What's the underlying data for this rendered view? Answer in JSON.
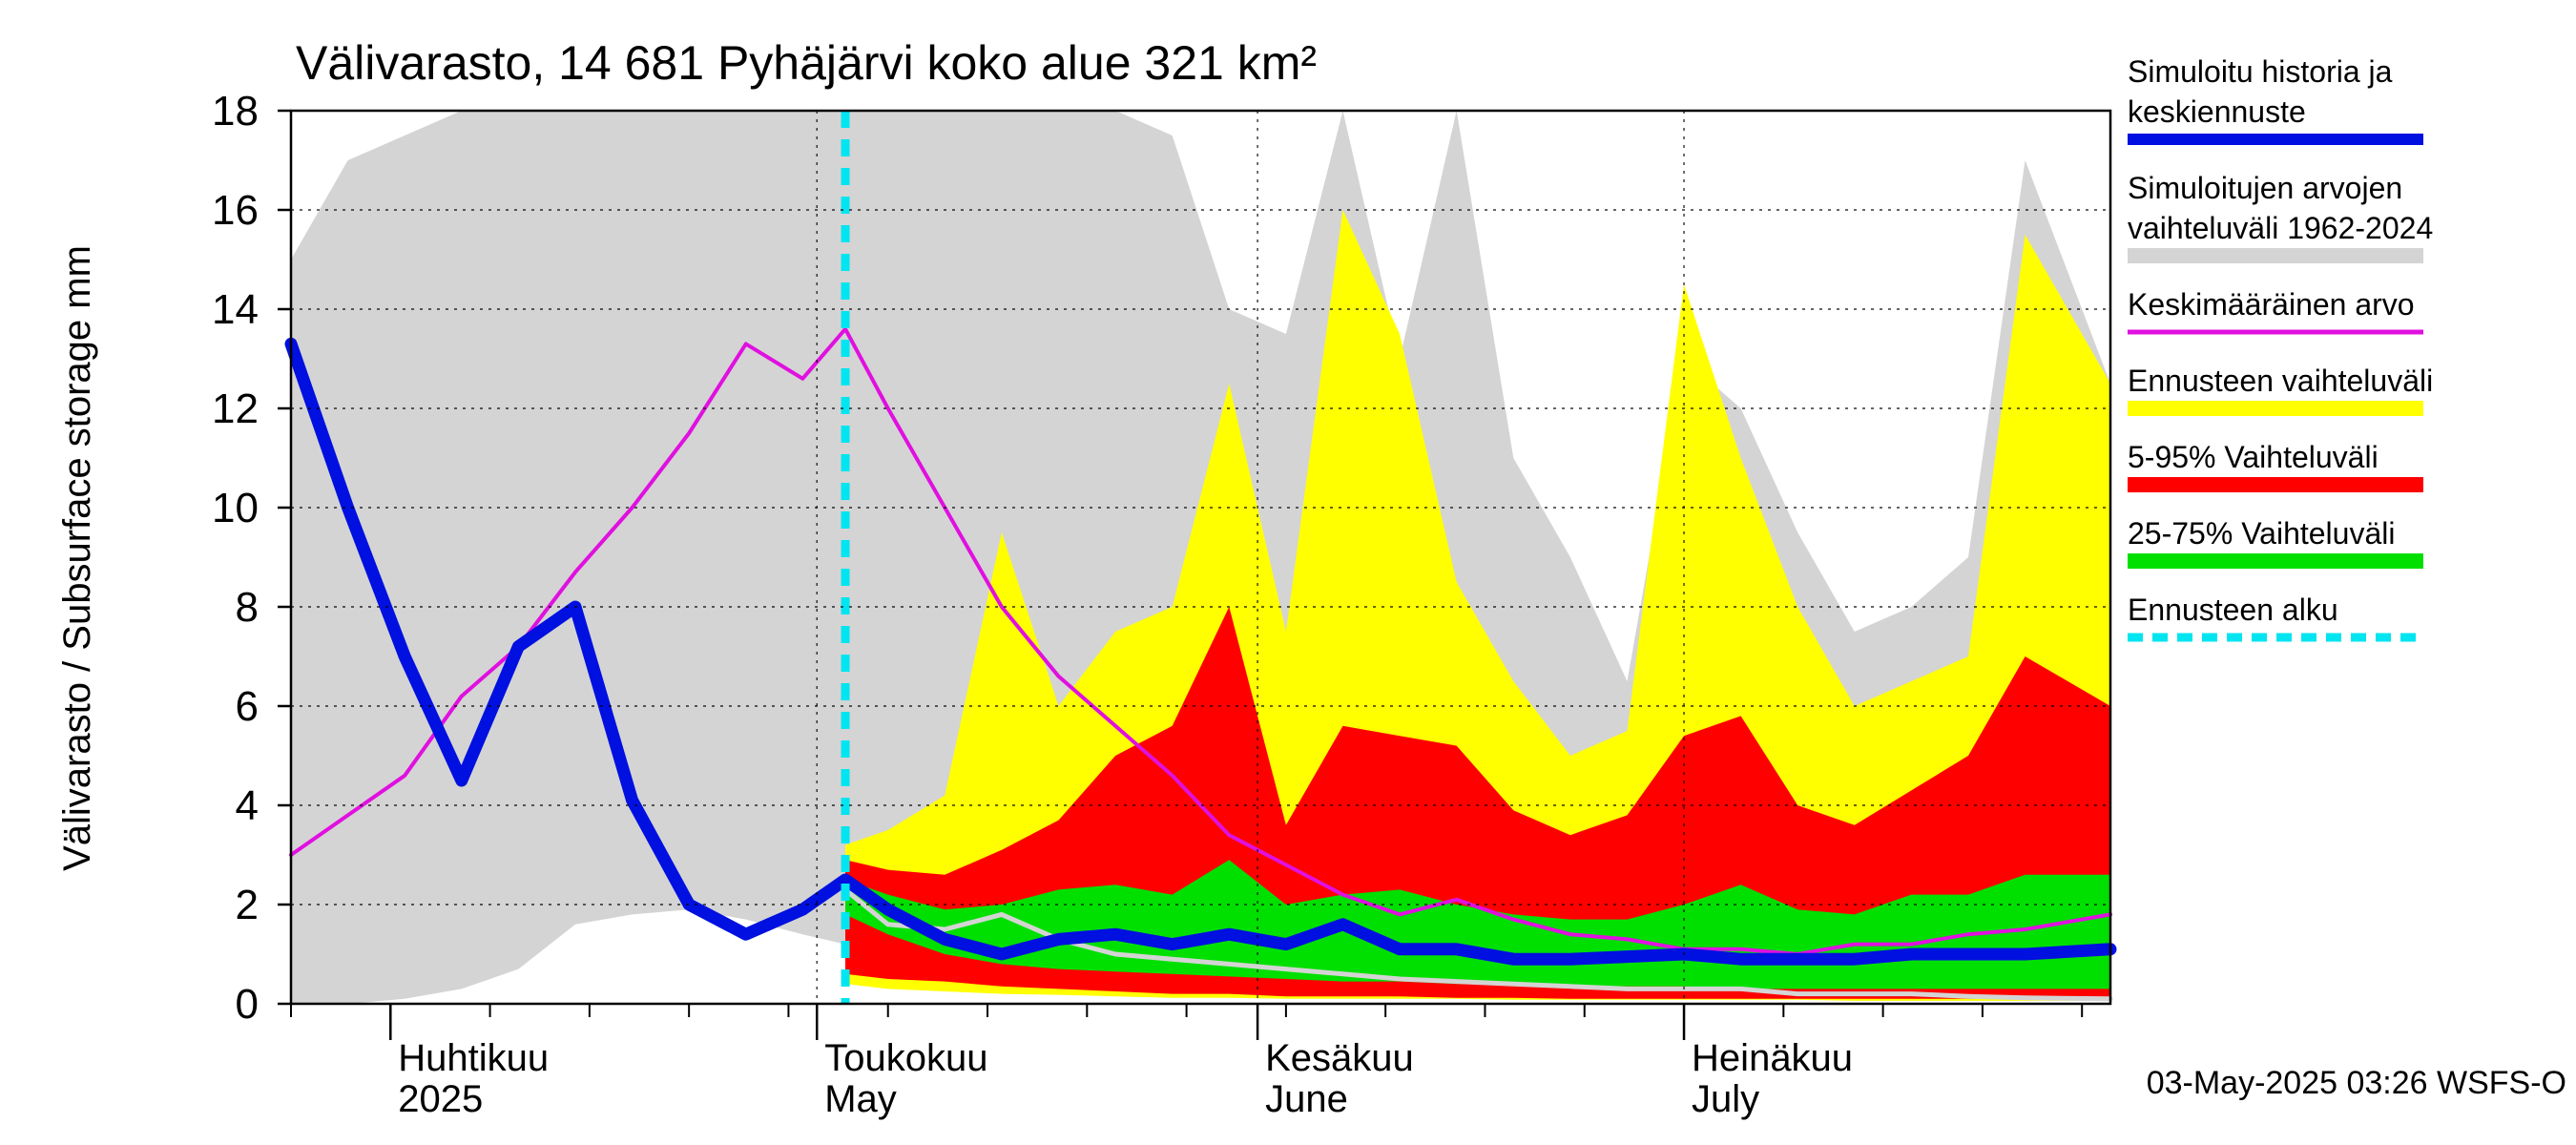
{
  "chart_data": {
    "type": "area",
    "title": "Välivarasto, 14 681 Pyhäjärvi koko alue 321 km²",
    "ylabel": "Välivarasto / Subsurface storage  mm",
    "ylim": [
      0,
      18
    ],
    "yticks": [
      0,
      2,
      4,
      6,
      8,
      10,
      12,
      14,
      16,
      18
    ],
    "xlim": [
      "2025-03-25",
      "2025-07-31"
    ],
    "grid": true,
    "legend_position": "right",
    "month_labels": [
      {
        "line1": "Huhtikuu",
        "line2": "2025",
        "date": "2025-04-01"
      },
      {
        "line1": "Toukokuu",
        "line2": "May",
        "date": "2025-05-01"
      },
      {
        "line1": "Kesäkuu",
        "line2": "June",
        "date": "2025-06-01"
      },
      {
        "line1": "Heinäkuu",
        "line2": "July",
        "date": "2025-07-01"
      }
    ],
    "footer": "03-May-2025 03:26 WSFS-O",
    "forecast_start": "2025-05-03",
    "legend": [
      {
        "label": "Simuloitu historia ja keskiennuste",
        "color": "#0010e0",
        "style": "thick"
      },
      {
        "label": "Simuloitujen arvojen vaihteluväli 1962-2024",
        "color": "#d4d4d4",
        "style": "band"
      },
      {
        "label": "Keskimääräinen arvo",
        "color": "#e010e0",
        "style": "line"
      },
      {
        "label": "Ennusteen vaihteluväli",
        "color": "#ffff00",
        "style": "band"
      },
      {
        "label": "5-95% Vaihteluväli",
        "color": "#ff0000",
        "style": "band"
      },
      {
        "label": "25-75% Vaihteluväli",
        "color": "#00e000",
        "style": "band"
      },
      {
        "label": "Ennusteen alku",
        "color": "#00e5f0",
        "style": "dashed"
      }
    ],
    "x": [
      "2025-03-25",
      "2025-03-29",
      "2025-04-02",
      "2025-04-06",
      "2025-04-10",
      "2025-04-14",
      "2025-04-18",
      "2025-04-22",
      "2025-04-26",
      "2025-04-30",
      "2025-05-03",
      "2025-05-06",
      "2025-05-10",
      "2025-05-14",
      "2025-05-18",
      "2025-05-22",
      "2025-05-26",
      "2025-05-30",
      "2025-06-03",
      "2025-06-07",
      "2025-06-11",
      "2025-06-15",
      "2025-06-19",
      "2025-06-23",
      "2025-06-27",
      "2025-07-01",
      "2025-07-05",
      "2025-07-09",
      "2025-07-13",
      "2025-07-17",
      "2025-07-21",
      "2025-07-25",
      "2025-07-31"
    ],
    "series": [
      {
        "name": "Simuloitujen arvojen vaihteluväli 1962-2024",
        "kind": "band",
        "color": "#d4d4d4",
        "low": [
          0.0,
          0.0,
          0.1,
          0.3,
          0.7,
          1.6,
          1.8,
          1.9,
          1.7,
          1.4,
          1.2,
          0.9,
          0.7,
          0.6,
          0.5,
          0.4,
          0.35,
          0.3,
          0.25,
          0.25,
          0.2,
          0.2,
          0.18,
          0.15,
          0.15,
          0.12,
          0.12,
          0.1,
          0.1,
          0.1,
          0.1,
          0.1,
          0.1
        ],
        "high": [
          15.0,
          17.0,
          17.5,
          18.0,
          18.0,
          18.0,
          18.0,
          18.0,
          18.0,
          18.0,
          18.0,
          18.0,
          18.0,
          18.0,
          18.0,
          18.0,
          17.5,
          14.0,
          13.5,
          18.0,
          13.0,
          18.0,
          11.0,
          9.0,
          6.5,
          13.0,
          12.0,
          9.5,
          7.5,
          8.0,
          9.0,
          17.0,
          12.5
        ]
      },
      {
        "name": "Ennusteen vaihteluväli",
        "kind": "band",
        "color": "#ffff00",
        "low": [
          null,
          null,
          null,
          null,
          null,
          null,
          null,
          null,
          null,
          null,
          0.4,
          0.3,
          0.25,
          0.2,
          0.18,
          0.15,
          0.12,
          0.12,
          0.1,
          0.1,
          0.1,
          0.1,
          0.08,
          0.08,
          0.08,
          0.08,
          0.08,
          0.08,
          0.06,
          0.06,
          0.06,
          0.06,
          0.06
        ],
        "high": [
          null,
          null,
          null,
          null,
          null,
          null,
          null,
          null,
          null,
          null,
          3.2,
          3.5,
          4.2,
          9.5,
          6.0,
          7.5,
          8.0,
          12.5,
          7.5,
          16.0,
          13.5,
          8.5,
          6.5,
          5.0,
          5.5,
          14.5,
          11.0,
          8.0,
          6.0,
          6.5,
          7.0,
          15.5,
          12.5
        ]
      },
      {
        "name": "5-95% Vaihteluväli",
        "kind": "band",
        "color": "#ff0000",
        "low": [
          null,
          null,
          null,
          null,
          null,
          null,
          null,
          null,
          null,
          null,
          0.6,
          0.5,
          0.45,
          0.35,
          0.3,
          0.25,
          0.2,
          0.2,
          0.15,
          0.15,
          0.15,
          0.12,
          0.12,
          0.1,
          0.1,
          0.1,
          0.1,
          0.1,
          0.1,
          0.1,
          0.1,
          0.1,
          0.1
        ],
        "high": [
          null,
          null,
          null,
          null,
          null,
          null,
          null,
          null,
          null,
          null,
          2.9,
          2.7,
          2.6,
          3.1,
          3.7,
          5.0,
          5.6,
          8.0,
          3.6,
          5.6,
          5.4,
          5.2,
          3.9,
          3.4,
          3.8,
          5.4,
          5.8,
          4.0,
          3.6,
          4.3,
          5.0,
          7.0,
          6.0
        ]
      },
      {
        "name": "25-75% Vaihteluväli",
        "kind": "band",
        "color": "#00e000",
        "low": [
          null,
          null,
          null,
          null,
          null,
          null,
          null,
          null,
          null,
          null,
          1.8,
          1.4,
          1.0,
          0.8,
          0.7,
          0.65,
          0.6,
          0.55,
          0.5,
          0.45,
          0.45,
          0.4,
          0.4,
          0.35,
          0.35,
          0.35,
          0.3,
          0.3,
          0.3,
          0.3,
          0.3,
          0.3,
          0.3
        ],
        "high": [
          null,
          null,
          null,
          null,
          null,
          null,
          null,
          null,
          null,
          null,
          2.5,
          2.2,
          1.9,
          2.0,
          2.3,
          2.4,
          2.2,
          2.9,
          2.0,
          2.2,
          2.3,
          2.0,
          1.8,
          1.7,
          1.7,
          2.0,
          2.4,
          1.9,
          1.8,
          2.2,
          2.2,
          2.6,
          2.6
        ]
      },
      {
        "name": "Simuloitu historia ja keskiennuste",
        "kind": "line",
        "color": "#0010e0",
        "values": [
          13.3,
          10.0,
          7.0,
          4.5,
          7.2,
          8.0,
          4.1,
          2.0,
          1.4,
          1.9,
          2.5,
          1.9,
          1.3,
          1.0,
          1.3,
          1.4,
          1.2,
          1.4,
          1.2,
          1.6,
          1.1,
          1.1,
          0.9,
          0.9,
          0.95,
          1.0,
          0.9,
          0.9,
          0.9,
          1.0,
          1.0,
          1.0,
          1.1
        ]
      },
      {
        "name": "Keskimääräinen arvo",
        "kind": "line",
        "color": "#e010e0",
        "values": [
          3.0,
          3.8,
          4.6,
          6.2,
          7.2,
          8.7,
          10.0,
          11.5,
          13.3,
          12.6,
          13.6,
          12.0,
          10.0,
          8.0,
          6.6,
          5.6,
          4.6,
          3.4,
          2.8,
          2.2,
          1.8,
          2.1,
          1.7,
          1.4,
          1.3,
          1.1,
          1.1,
          1.0,
          1.2,
          1.2,
          1.4,
          1.5,
          1.8
        ]
      },
      {
        "name": "Ennusteen minimi",
        "kind": "line",
        "color": "#d4d4d4",
        "values": [
          null,
          null,
          null,
          null,
          null,
          null,
          null,
          null,
          null,
          null,
          2.3,
          1.6,
          1.5,
          1.8,
          1.3,
          1.0,
          0.9,
          0.8,
          0.7,
          0.6,
          0.5,
          0.45,
          0.4,
          0.35,
          0.3,
          0.3,
          0.3,
          0.2,
          0.2,
          0.2,
          0.15,
          0.12,
          0.1
        ]
      }
    ]
  }
}
